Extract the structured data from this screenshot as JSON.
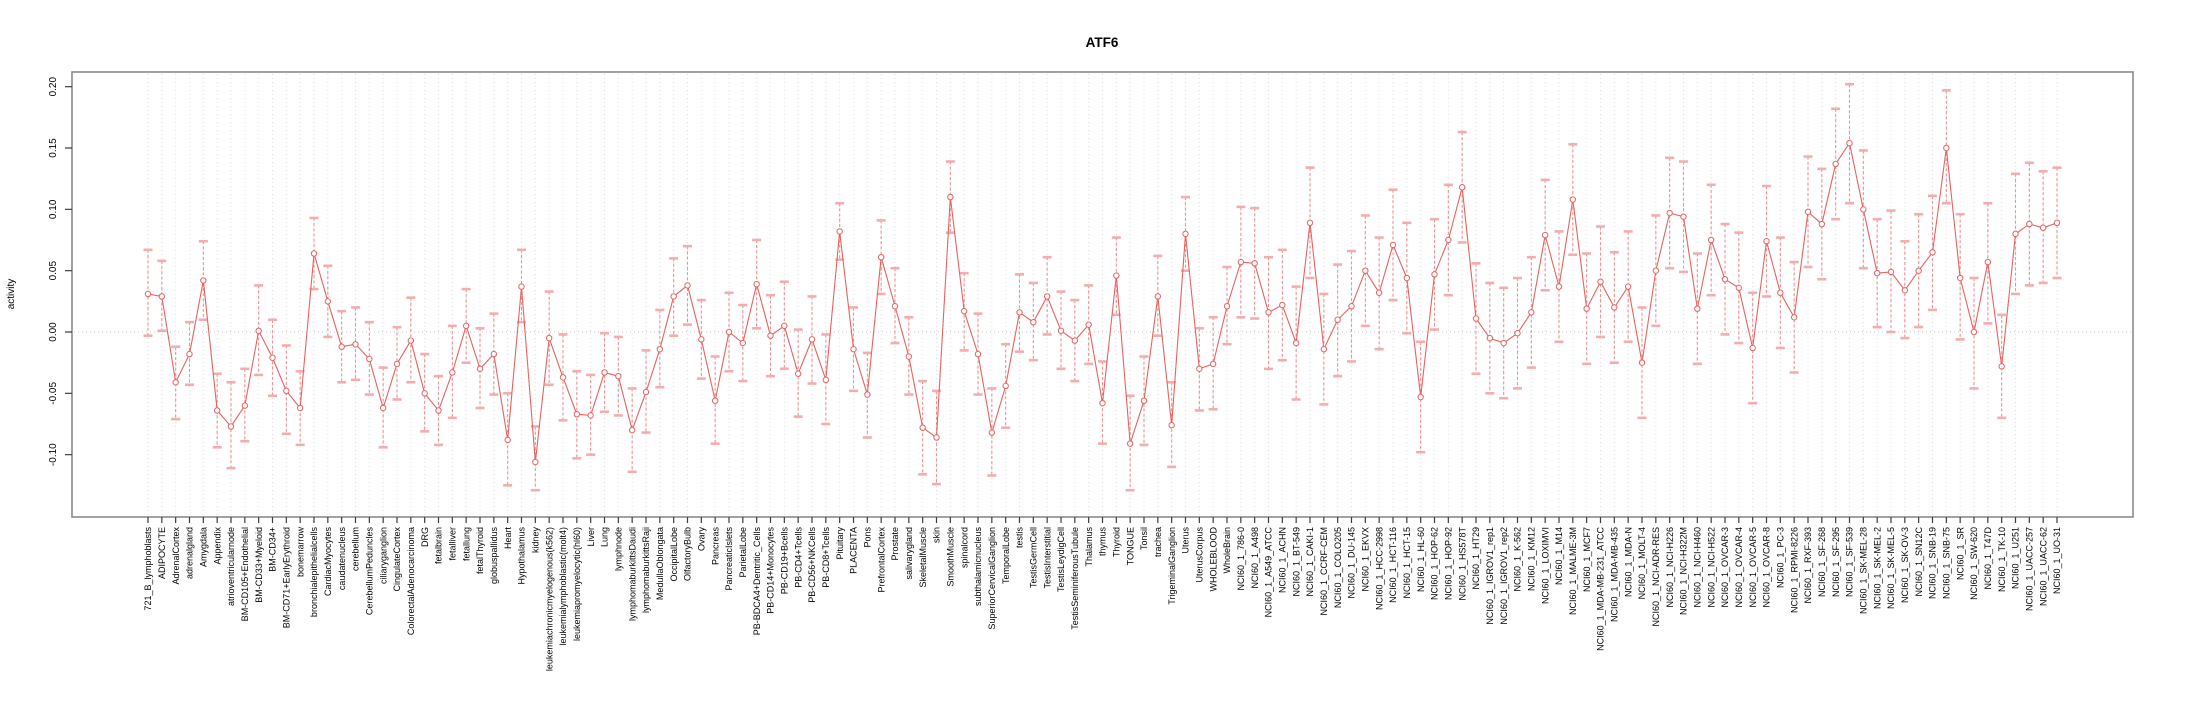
{
  "page": {
    "title": "ATF6"
  },
  "chart_data": {
    "type": "line",
    "subtype": "points-with-error-bars",
    "title": "ATF6",
    "xlabel": "",
    "ylabel": "activity",
    "legend": "none",
    "grid": "vertical-dotted-per-category, dotted-zero-line",
    "marker": "open-circle",
    "yticks": [
      0.2,
      0.15,
      0.1,
      0.05,
      0.0,
      -0.05,
      -0.1
    ],
    "ylim": [
      -0.151,
      0.212
    ],
    "colors": {
      "line": "#e8625f",
      "point_stroke": "#e8625f",
      "point_fill": "#ffffff",
      "error_stem": "#f09090",
      "error_cap": "#f5acac",
      "grid": "#dedede",
      "zero_line": "#cacaca",
      "box": "#8a8a8a",
      "axis": "#3c3c3c",
      "text": "#000000",
      "background": "#ffffff"
    },
    "categories": [
      "721_B_lymphoblasts",
      "ADIPOCYTE",
      "AdrenalCortex",
      "adrenalgland",
      "Amygdala",
      "Appendix",
      "atrioventricularnode",
      "BM-CD105+Endothelial",
      "BM-CD33+Myeloid",
      "BM-CD34+",
      "BM-CD71+EarlyErythroid",
      "bonemarrow",
      "bronchialepithelialcells",
      "CardiacMyocytes",
      "caudatenucleus",
      "cerebellum",
      "CerebellumPeduncles",
      "ciliaryganglion",
      "CingulateCortex",
      "ColorectalAdenocarcinoma",
      "DRG",
      "fetalbrain",
      "fetalliver",
      "fetallung",
      "fetalThyroid",
      "globuspallidus",
      "Heart",
      "Hypothalamus",
      "kidney",
      "leukemiachronicmyelogenous(k562)",
      "leukemialymphoblastic(molt4)",
      "leukemiapromyelocytic(hl60)",
      "Liver",
      "Lung",
      "lymphnode",
      "lymphomaburkittsDaudi",
      "lymphomaburkittsRaji",
      "MedullaOblongata",
      "OccipitalLobe",
      "OlfactoryBulb",
      "Ovary",
      "Pancreas",
      "PancreaticIslets",
      "ParietalLobe",
      "PB-BDCA4+Dentritic_Cells",
      "PB-CD14+Monocytes",
      "PB-CD19+Bcells",
      "PB-CD4+Tcells",
      "PB-CD56+NKCells",
      "PB-CD8+Tcells",
      "Pituitary",
      "PLACENTA",
      "Pons",
      "PrefrontalCortex",
      "Prostate",
      "salivarygland",
      "SkeletalMuscle",
      "skin",
      "SmoothMuscle",
      "spinalcord",
      "subthalamicnucleus",
      "SuperiorCervicalGanglion",
      "TemporalLobe",
      "testis",
      "TestisGermCell",
      "TestisInterstitial",
      "TestisLeydigCell",
      "TestisSeminiferousTubule",
      "Thalamus",
      "thymus",
      "Thyroid",
      "TONGUE",
      "Tonsil",
      "trachea",
      "TrigeminalGanglion",
      "Uterus",
      "UterusCorpus",
      "WHOLEBLOOD",
      "WholeBrain",
      "NCI60_1_786-0",
      "NCI60_1_A498",
      "NCI60_1_A549_ATCC",
      "NCI60_1_ACHN",
      "NCI60_1_BT-549",
      "NCI60_1_CAKI-1",
      "NCI60_1_CCRF-CEM",
      "NCI60_1_COLO205",
      "NCI60_1_DU-145",
      "NCI60_1_EKVX",
      "NCI60_1_HCC-2998",
      "NCI60_1_HCT-116",
      "NCI60_1_HCT-15",
      "NCI60_1_HL-60",
      "NCI60_1_HOP-62",
      "NCI60_1_HOP-92",
      "NCI60_1_HS578T",
      "NCI60_1_HT29",
      "NCI60_1_IGROV1_rep1",
      "NCI60_1_IGROV1_rep2",
      "NCI60_1_K-562",
      "NCI60_1_KM12",
      "NCI60_1_LOXIMVI",
      "NCI60_1_M14",
      "NCI60_1_MALME-3M",
      "NCI60_1_MCF7",
      "NCI60_1_MDA-MB-231_ATCC",
      "NCI60_1_MDA-MB-435",
      "NCI60_1_MDA-N",
      "NCI60_1_MOLT-4",
      "NCI60_1_NCI-ADR-RES",
      "NCI60_1_NCI-H226",
      "NCI60_1_NCI-H322M",
      "NCI60_1_NCI-H460",
      "NCI60_1_NCI-H522",
      "NCI60_1_OVCAR-3",
      "NCI60_1_OVCAR-4",
      "NCI60_1_OVCAR-5",
      "NCI60_1_OVCAR-8",
      "NCI60_1_PC-3",
      "NCI60_1_RPMI-8226",
      "NCI60_1_RXF-393",
      "NCI60_1_SF-268",
      "NCI60_1_SF-295",
      "NCI60_1_SF-539",
      "NCI60_1_SK-MEL-28",
      "NCI60_1_SK-MEL-2",
      "NCI60_1_SK-MEL-5",
      "NCI60_1_SK-OV-3",
      "NCI60_1_SN12C",
      "NCI60_1_SNB-19",
      "NCI60_1_SNB-75",
      "NCI60_1_SR",
      "NCI60_1_SW-620",
      "NCI60_1_T47D",
      "NCI60_1_TK-10",
      "NCI60_1_U251",
      "NCI60_1_UACC-257",
      "NCI60_1_UACC-62",
      "NCI60_1_UO-31"
    ],
    "values": [
      0.031,
      0.029,
      -0.041,
      -0.018,
      0.042,
      -0.064,
      -0.077,
      -0.06,
      0.001,
      -0.021,
      -0.048,
      -0.062,
      0.064,
      0.025,
      -0.012,
      -0.01,
      -0.022,
      -0.062,
      -0.026,
      -0.007,
      -0.05,
      -0.064,
      -0.033,
      0.005,
      -0.03,
      -0.018,
      -0.088,
      0.037,
      -0.106,
      -0.005,
      -0.037,
      -0.067,
      -0.068,
      -0.033,
      -0.036,
      -0.08,
      -0.049,
      -0.014,
      0.029,
      0.038,
      -0.006,
      -0.056,
      0.0,
      -0.009,
      0.039,
      -0.003,
      0.005,
      -0.034,
      -0.006,
      -0.039,
      0.082,
      -0.014,
      -0.051,
      0.061,
      0.021,
      -0.02,
      -0.078,
      -0.086,
      0.11,
      0.017,
      -0.018,
      -0.082,
      -0.044,
      0.016,
      0.008,
      0.029,
      0.001,
      -0.007,
      0.006,
      -0.058,
      0.046,
      -0.091,
      -0.056,
      0.029,
      -0.076,
      0.08,
      -0.03,
      -0.026,
      0.021,
      0.057,
      0.056,
      0.016,
      0.022,
      -0.009,
      0.089,
      -0.014,
      0.01,
      0.021,
      0.05,
      0.032,
      0.071,
      0.044,
      -0.053,
      0.047,
      0.075,
      0.118,
      0.011,
      -0.005,
      -0.009,
      -0.001,
      0.016,
      0.079,
      0.037,
      0.108,
      0.019,
      0.041,
      0.02,
      0.037,
      -0.025,
      0.05,
      0.097,
      0.094,
      0.019,
      0.075,
      0.043,
      0.036,
      -0.013,
      0.074,
      0.032,
      0.012,
      0.098,
      0.088,
      0.137,
      0.154,
      0.1,
      0.048,
      0.049,
      0.034,
      0.05,
      0.065,
      0.15,
      0.044,
      0.0,
      0.057,
      -0.028,
      0.08,
      0.088,
      0.085,
      0.089
    ],
    "err_hi": [
      0.067,
      0.058,
      -0.012,
      0.008,
      0.074,
      -0.034,
      -0.041,
      -0.03,
      0.038,
      0.01,
      -0.011,
      -0.032,
      0.093,
      0.054,
      0.017,
      0.02,
      0.008,
      -0.029,
      0.004,
      0.028,
      -0.018,
      -0.036,
      0.005,
      0.035,
      0.003,
      0.015,
      -0.05,
      0.067,
      -0.077,
      0.033,
      -0.002,
      -0.032,
      -0.035,
      -0.001,
      -0.004,
      -0.046,
      -0.015,
      0.018,
      0.06,
      0.07,
      0.026,
      -0.02,
      0.032,
      0.022,
      0.075,
      0.03,
      0.041,
      0.002,
      0.029,
      -0.002,
      0.105,
      0.02,
      -0.017,
      0.091,
      0.052,
      0.012,
      -0.04,
      -0.048,
      0.139,
      0.048,
      0.015,
      -0.046,
      -0.01,
      0.047,
      0.04,
      0.061,
      0.033,
      0.026,
      0.038,
      -0.024,
      0.077,
      -0.052,
      -0.02,
      0.062,
      -0.041,
      0.11,
      0.003,
      0.012,
      0.053,
      0.102,
      0.101,
      0.061,
      0.067,
      0.037,
      0.134,
      0.031,
      0.055,
      0.066,
      0.095,
      0.077,
      0.116,
      0.089,
      -0.008,
      0.092,
      0.12,
      0.163,
      0.056,
      0.04,
      0.036,
      0.044,
      0.061,
      0.124,
      0.082,
      0.153,
      0.064,
      0.086,
      0.065,
      0.082,
      0.02,
      0.095,
      0.142,
      0.139,
      0.064,
      0.12,
      0.088,
      0.081,
      0.032,
      0.119,
      0.077,
      0.057,
      0.143,
      0.133,
      0.182,
      0.202,
      0.148,
      0.092,
      0.099,
      0.074,
      0.096,
      0.111,
      0.197,
      0.096,
      0.044,
      0.105,
      0.014,
      0.129,
      0.138,
      0.131,
      0.134
    ],
    "err_lo": [
      -0.003,
      0.001,
      -0.071,
      -0.043,
      0.01,
      -0.094,
      -0.111,
      -0.089,
      -0.035,
      -0.052,
      -0.083,
      -0.092,
      0.035,
      -0.004,
      -0.041,
      -0.039,
      -0.051,
      -0.094,
      -0.055,
      -0.041,
      -0.081,
      -0.092,
      -0.07,
      -0.025,
      -0.062,
      -0.051,
      -0.125,
      0.008,
      -0.129,
      -0.043,
      -0.072,
      -0.103,
      -0.1,
      -0.065,
      -0.068,
      -0.114,
      -0.082,
      -0.045,
      -0.003,
      0.006,
      -0.038,
      -0.091,
      -0.032,
      -0.04,
      0.003,
      -0.036,
      -0.03,
      -0.069,
      -0.042,
      -0.075,
      0.059,
      -0.048,
      -0.086,
      0.031,
      -0.009,
      -0.051,
      -0.116,
      -0.124,
      0.081,
      -0.015,
      -0.051,
      -0.117,
      -0.078,
      -0.016,
      -0.023,
      -0.002,
      -0.03,
      -0.04,
      -0.026,
      -0.091,
      0.014,
      -0.129,
      -0.092,
      -0.003,
      -0.11,
      0.05,
      -0.064,
      -0.063,
      -0.01,
      0.012,
      0.011,
      -0.03,
      -0.023,
      -0.055,
      0.044,
      -0.059,
      -0.036,
      -0.024,
      0.005,
      -0.014,
      0.026,
      -0.001,
      -0.098,
      0.002,
      0.03,
      0.073,
      -0.034,
      -0.05,
      -0.054,
      -0.046,
      -0.029,
      0.034,
      -0.008,
      0.063,
      -0.026,
      -0.004,
      -0.025,
      -0.008,
      -0.07,
      0.005,
      0.052,
      0.049,
      -0.026,
      0.03,
      -0.002,
      -0.009,
      -0.058,
      0.029,
      -0.013,
      -0.033,
      0.053,
      0.043,
      0.092,
      0.105,
      0.052,
      0.004,
      0.0,
      -0.005,
      0.004,
      0.018,
      0.105,
      -0.006,
      -0.046,
      0.007,
      -0.07,
      0.031,
      0.038,
      0.04,
      0.044
    ]
  }
}
